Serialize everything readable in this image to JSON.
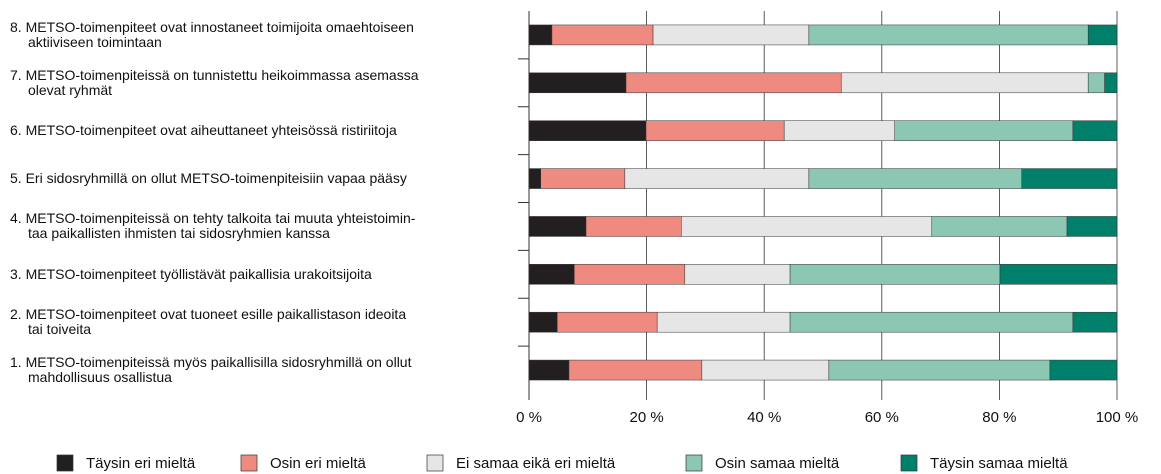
{
  "chart_data": {
    "type": "stacked-bar-horizontal",
    "categories": [
      "8. METSO-toimenpiteet ovat innostaneet toimijoita omaehtoiseen\naktiiviseen toimintaan",
      "7. METSO-toimenpiteissä on tunnistettu heikoimmassa asemassa\nolevat ryhmät",
      "6. METSO-toimenpiteet ovat aiheuttaneet yhteisössä ristiriitoja",
      "5. Eri sidosryhmillä on ollut METSO-toimenpiteisiin vapaa pääsy",
      "4. METSO-toimenpiteissä on tehty talkoita tai muuta yhteistoimin-\ntaa paikallisten ihmisten tai sidosryhmien kanssa",
      "3. METSO-toimenpiteet työllistävät paikallisia urakoitsijoita",
      "2. METSO-toimenpiteet ovat tuoneet esille paikallistason ideoita\ntai toiveita",
      "1. METSO-toimenpiteissä myös paikallisilla sidosryhmillä on ollut\nmahdollisuus osallistua"
    ],
    "series": [
      {
        "name": "Täysin eri mieltä",
        "color": "#231f20",
        "values": [
          3.9,
          16.5,
          19.9,
          2.0,
          9.7,
          7.7,
          4.8,
          6.8
        ]
      },
      {
        "name": "Osin eri mieltä",
        "color": "#ee8a80",
        "values": [
          17.2,
          36.6,
          23.5,
          14.3,
          16.2,
          18.8,
          17.0,
          22.6
        ]
      },
      {
        "name": "Ei samaa eikä eri mieltä",
        "color": "#e6e6e6",
        "values": [
          26.5,
          42.0,
          18.8,
          31.3,
          42.6,
          17.9,
          22.6,
          21.6
        ]
      },
      {
        "name": "Osin samaa mieltä",
        "color": "#8cc7b4",
        "values": [
          47.5,
          2.8,
          30.3,
          36.2,
          23.0,
          35.7,
          48.1,
          37.6
        ]
      },
      {
        "name": "Täysin samaa mieltä",
        "color": "#00806a",
        "values": [
          4.9,
          2.1,
          7.5,
          16.2,
          8.5,
          19.9,
          7.5,
          11.4
        ]
      }
    ],
    "xlim": [
      0,
      100
    ],
    "xticks": [
      {
        "value": 0,
        "label": "0 %"
      },
      {
        "value": 20,
        "label": "20 %"
      },
      {
        "value": 40,
        "label": "40 %"
      },
      {
        "value": 60,
        "label": "60 %"
      },
      {
        "value": 80,
        "label": "80 %"
      },
      {
        "value": 100,
        "label": "100 %"
      }
    ],
    "legend": "bottom"
  }
}
